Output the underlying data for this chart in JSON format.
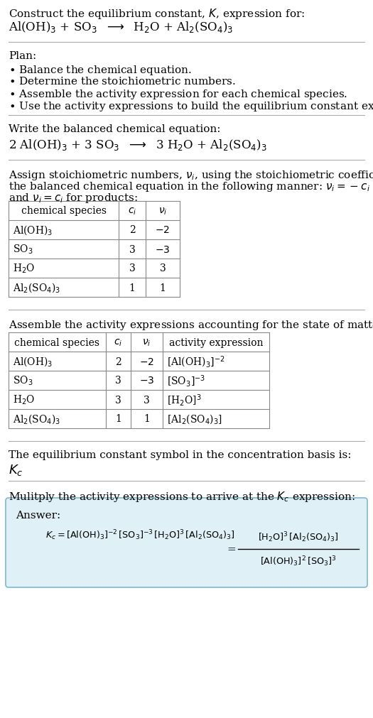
{
  "bg_color": "#ffffff",
  "answer_bg_color": "#dff0f7",
  "answer_border_color": "#7fb8d0",
  "text_color": "#000000"
}
